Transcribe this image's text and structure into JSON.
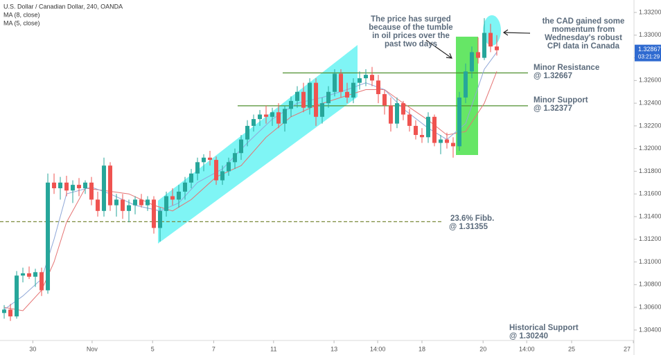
{
  "chart_data": {
    "type": "candlestick",
    "title": "U.S. Dollar / Canadian Dollar, 240, OANDA",
    "up_color": "#26a69a",
    "down_color": "#ef5350",
    "candles": [
      [
        1.3055,
        1.3062,
        1.305,
        1.3058
      ],
      [
        1.3058,
        1.3063,
        1.3048,
        1.3052
      ],
      [
        1.3052,
        1.3092,
        1.305,
        1.3088
      ],
      [
        1.3088,
        1.3095,
        1.3082,
        1.309
      ],
      [
        1.309,
        1.3096,
        1.3085,
        1.3087
      ],
      [
        1.3087,
        1.3094,
        1.3078,
        1.3091
      ],
      [
        1.3091,
        1.3095,
        1.307,
        1.3075
      ],
      [
        1.3075,
        1.3178,
        1.3072,
        1.317
      ],
      [
        1.317,
        1.3178,
        1.316,
        1.3165
      ],
      [
        1.3165,
        1.3175,
        1.3155,
        1.317
      ],
      [
        1.317,
        1.3176,
        1.3158,
        1.3163
      ],
      [
        1.3163,
        1.3172,
        1.3152,
        1.3168
      ],
      [
        1.3168,
        1.3174,
        1.3158,
        1.3165
      ],
      [
        1.3165,
        1.3172,
        1.316,
        1.317
      ],
      [
        1.317,
        1.3175,
        1.315,
        1.3155
      ],
      [
        1.3155,
        1.3162,
        1.314,
        1.3145
      ],
      [
        1.3145,
        1.3192,
        1.314,
        1.3185
      ],
      [
        1.3185,
        1.3188,
        1.3145,
        1.315
      ],
      [
        1.315,
        1.316,
        1.314,
        1.3155
      ],
      [
        1.3155,
        1.316,
        1.3138,
        1.3145
      ],
      [
        1.3145,
        1.3155,
        1.3135,
        1.315
      ],
      [
        1.315,
        1.3158,
        1.3142,
        1.3155
      ],
      [
        1.3155,
        1.316,
        1.3148,
        1.315
      ],
      [
        1.315,
        1.3158,
        1.3145,
        1.3155
      ],
      [
        1.3155,
        1.3158,
        1.3125,
        1.313
      ],
      [
        1.313,
        1.3148,
        1.3118,
        1.3145
      ],
      [
        1.3145,
        1.3162,
        1.314,
        1.3158
      ],
      [
        1.3158,
        1.3165,
        1.315,
        1.3155
      ],
      [
        1.3155,
        1.3168,
        1.3148,
        1.3162
      ],
      [
        1.3162,
        1.3175,
        1.3155,
        1.317
      ],
      [
        1.317,
        1.3182,
        1.3165,
        1.3178
      ],
      [
        1.3178,
        1.3192,
        1.3172,
        1.3188
      ],
      [
        1.3188,
        1.3195,
        1.318,
        1.3192
      ],
      [
        1.3192,
        1.3198,
        1.3185,
        1.319
      ],
      [
        1.319,
        1.3193,
        1.3168,
        1.3172
      ],
      [
        1.3172,
        1.3185,
        1.3168,
        1.318
      ],
      [
        1.318,
        1.3192,
        1.3176,
        1.3188
      ],
      [
        1.3188,
        1.32,
        1.3182,
        1.3196
      ],
      [
        1.3196,
        1.3212,
        1.319,
        1.3208
      ],
      [
        1.3208,
        1.3225,
        1.3202,
        1.322
      ],
      [
        1.322,
        1.323,
        1.3215,
        1.3226
      ],
      [
        1.3226,
        1.3234,
        1.322,
        1.323
      ],
      [
        1.323,
        1.3238,
        1.3222,
        1.3228
      ],
      [
        1.3228,
        1.3236,
        1.322,
        1.3232
      ],
      [
        1.3232,
        1.324,
        1.3218,
        1.3222
      ],
      [
        1.3222,
        1.3238,
        1.3215,
        1.3235
      ],
      [
        1.3235,
        1.3246,
        1.3228,
        1.3242
      ],
      [
        1.3242,
        1.3255,
        1.3236,
        1.325
      ],
      [
        1.325,
        1.3258,
        1.3232,
        1.3236
      ],
      [
        1.3236,
        1.3262,
        1.323,
        1.3258
      ],
      [
        1.3258,
        1.3262,
        1.322,
        1.3228
      ],
      [
        1.3228,
        1.3245,
        1.3222,
        1.324
      ],
      [
        1.324,
        1.3255,
        1.3236,
        1.325
      ],
      [
        1.325,
        1.327,
        1.3246,
        1.3266
      ],
      [
        1.3266,
        1.327,
        1.3245,
        1.325
      ],
      [
        1.325,
        1.3258,
        1.324,
        1.3245
      ],
      [
        1.3245,
        1.3262,
        1.324,
        1.3258
      ],
      [
        1.3258,
        1.3268,
        1.3252,
        1.3262
      ],
      [
        1.3262,
        1.327,
        1.3255,
        1.3265
      ],
      [
        1.3265,
        1.3272,
        1.3255,
        1.326
      ],
      [
        1.326,
        1.3265,
        1.324,
        1.3248
      ],
      [
        1.3248,
        1.3252,
        1.323,
        1.3238
      ],
      [
        1.3238,
        1.3245,
        1.3215,
        1.3222
      ],
      [
        1.3222,
        1.3245,
        1.3218,
        1.324
      ],
      [
        1.324,
        1.3242,
        1.3225,
        1.323
      ],
      [
        1.323,
        1.3235,
        1.3215,
        1.322
      ],
      [
        1.322,
        1.3225,
        1.3208,
        1.3212
      ],
      [
        1.3212,
        1.3218,
        1.3205,
        1.321
      ],
      [
        1.321,
        1.3232,
        1.3205,
        1.3228
      ],
      [
        1.3228,
        1.323,
        1.3202,
        1.3205
      ],
      [
        1.3205,
        1.3212,
        1.3195,
        1.3208
      ],
      [
        1.3208,
        1.3214,
        1.32,
        1.3205
      ],
      [
        1.3205,
        1.321,
        1.3192,
        1.3202
      ],
      [
        1.3202,
        1.325,
        1.3198,
        1.3245
      ],
      [
        1.3245,
        1.3275,
        1.324,
        1.3268
      ],
      [
        1.3268,
        1.329,
        1.3262,
        1.3285
      ],
      [
        1.3285,
        1.3298,
        1.3275,
        1.328
      ],
      [
        1.328,
        1.3315,
        1.3278,
        1.3302
      ],
      [
        1.3302,
        1.331,
        1.3285,
        1.329
      ],
      [
        1.329,
        1.33,
        1.3282,
        1.32867
      ]
    ],
    "series": [
      {
        "name": "MA (8, close)",
        "color": "#e57373",
        "x": [
          0,
          3,
          6,
          8,
          10,
          13,
          16,
          20,
          24,
          27,
          30,
          34,
          38,
          42,
          46,
          50,
          54,
          58,
          61,
          64,
          68,
          71,
          74,
          77,
          79
        ],
        "values": [
          1.306,
          1.3057,
          1.3075,
          1.31,
          1.3135,
          1.3165,
          1.3163,
          1.316,
          1.315,
          1.3145,
          1.3155,
          1.3175,
          1.3185,
          1.321,
          1.3228,
          1.3238,
          1.3245,
          1.3252,
          1.3252,
          1.324,
          1.3225,
          1.3212,
          1.3215,
          1.324,
          1.3268
        ]
      },
      {
        "name": "MA (5, close)",
        "color": "#90a8d8",
        "x": [
          0,
          3,
          6,
          8,
          10,
          14,
          17,
          21,
          25,
          28,
          31,
          35,
          39,
          43,
          47,
          51,
          55,
          58,
          61,
          64,
          68,
          71,
          74,
          77,
          79
        ],
        "values": [
          1.3058,
          1.307,
          1.3085,
          1.312,
          1.316,
          1.3166,
          1.316,
          1.315,
          1.3145,
          1.3152,
          1.317,
          1.3182,
          1.3205,
          1.3226,
          1.324,
          1.3245,
          1.3252,
          1.3258,
          1.3252,
          1.3235,
          1.3218,
          1.3208,
          1.3222,
          1.327,
          1.3285
        ]
      }
    ],
    "ylim": [
      1.3032,
      1.3331
    ],
    "yticks": [
      {
        "value": 1.304,
        "label": "1.30400"
      },
      {
        "value": 1.306,
        "label": "1.30600"
      },
      {
        "value": 1.308,
        "label": "1.30800"
      },
      {
        "value": 1.31,
        "label": "1.31000"
      },
      {
        "value": 1.312,
        "label": "1.31200"
      },
      {
        "value": 1.314,
        "label": "1.31400"
      },
      {
        "value": 1.316,
        "label": "1.31600"
      },
      {
        "value": 1.318,
        "label": "1.31800"
      },
      {
        "value": 1.32,
        "label": "1.32000"
      },
      {
        "value": 1.322,
        "label": "1.32200"
      },
      {
        "value": 1.324,
        "label": "1.32400"
      },
      {
        "value": 1.326,
        "label": "1.32600"
      },
      {
        "value": 1.328,
        "label": "1.32800"
      },
      {
        "value": 1.33,
        "label": "1.33000"
      },
      {
        "value": 1.332,
        "label": "1.33200"
      }
    ],
    "xlim": [
      -0.67,
      101
    ],
    "xticks": [
      {
        "value": 4.6,
        "label": "30"
      },
      {
        "value": 14.1,
        "label": "Nov"
      },
      {
        "value": 23.8,
        "label": "5"
      },
      {
        "value": 33.6,
        "label": "7"
      },
      {
        "value": 43.2,
        "label": "11"
      },
      {
        "value": 52.9,
        "label": "13"
      },
      {
        "value": 59.9,
        "label": "14:00"
      },
      {
        "value": 67,
        "label": "18"
      },
      {
        "value": 76.8,
        "label": "20"
      },
      {
        "value": 83.8,
        "label": "14:00"
      },
      {
        "value": 91,
        "label": "25"
      },
      {
        "value": 100.9,
        "label": "27"
      }
    ],
    "grid": false,
    "last_price": {
      "value": 1.32867,
      "label": "1.32867"
    },
    "countdown": "03:21:29",
    "levels": [
      {
        "value": 1.32667,
        "color": "#4e8f2e",
        "style": "solid"
      },
      {
        "value": 1.32377,
        "color": "#4e8f2e",
        "style": "solid"
      },
      {
        "value": 1.31355,
        "color": "#7b8a3c",
        "style": "dashed"
      }
    ],
    "annotations": [
      {
        "lines": [
          "The price has surged",
          "because of the tumble",
          "in oil prices over the",
          "past two days"
        ]
      },
      {
        "lines": [
          "the CAD gained some",
          "momentum from",
          "Wednesday's robust",
          "CPI data in Canada"
        ]
      },
      {
        "lines": [
          "Minor Resistance",
          "@ 1.32667"
        ]
      },
      {
        "lines": [
          "Minor Support",
          "@ 1.32377"
        ]
      },
      {
        "lines": [
          "23.6% Fibb.",
          "@ 1.31355"
        ]
      },
      {
        "lines": [
          "Historical Support",
          "@ 1.30240"
        ]
      }
    ]
  }
}
